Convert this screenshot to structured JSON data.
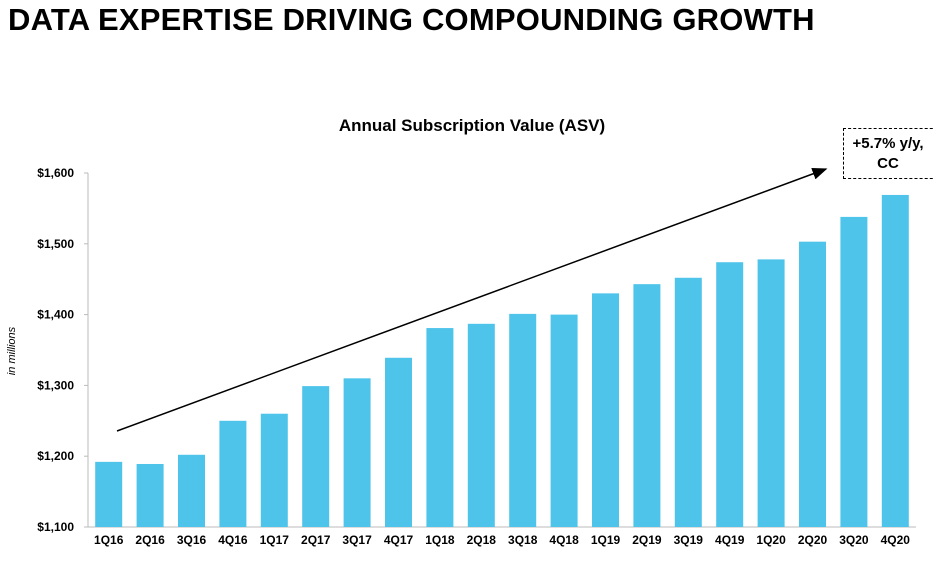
{
  "page": {
    "title": "DATA EXPERTISE DRIVING COMPOUNDING GROWTH"
  },
  "chart_data": {
    "type": "bar",
    "title": "Annual Subscription Value (ASV)",
    "ylabel": "in millions",
    "xlabel": "",
    "categories": [
      "1Q16",
      "2Q16",
      "3Q16",
      "4Q16",
      "1Q17",
      "2Q17",
      "3Q17",
      "4Q17",
      "1Q18",
      "2Q18",
      "3Q18",
      "4Q18",
      "1Q19",
      "2Q19",
      "3Q19",
      "4Q19",
      "1Q20",
      "2Q20",
      "3Q20",
      "4Q20"
    ],
    "values": [
      1192,
      1189,
      1202,
      1250,
      1260,
      1299,
      1310,
      1339,
      1381,
      1387,
      1401,
      1400,
      1430,
      1443,
      1452,
      1474,
      1478,
      1503,
      1538,
      1569
    ],
    "ylim": [
      1100,
      1600
    ],
    "yticks": [
      1100,
      1200,
      1300,
      1400,
      1500,
      1600
    ],
    "ytick_labels": [
      "$1,100",
      "$1,200",
      "$1,300",
      "$1,400",
      "$1,500",
      "$1,600"
    ],
    "grid": false,
    "bar_color": "#4fc4ea",
    "annotation": {
      "line1": "+5.7% y/y,",
      "line2": "CC"
    },
    "trend_arrow": true
  }
}
